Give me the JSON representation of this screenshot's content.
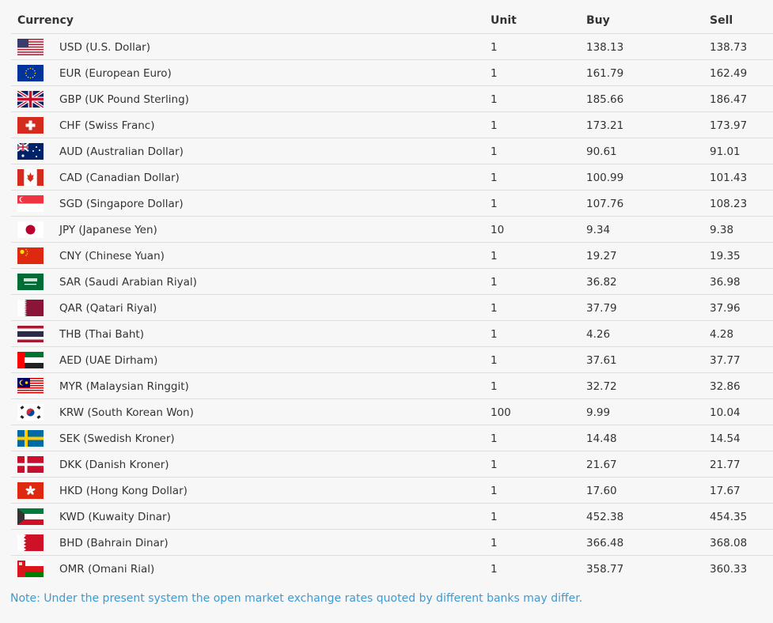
{
  "table": {
    "headers": {
      "currency": "Currency",
      "unit": "Unit",
      "buy": "Buy",
      "sell": "Sell"
    },
    "rows": [
      {
        "flag": "us-flag",
        "currency": "USD (U.S. Dollar)",
        "unit": "1",
        "buy": "138.13",
        "sell": "138.73"
      },
      {
        "flag": "eu-flag",
        "currency": "EUR (European Euro)",
        "unit": "1",
        "buy": "161.79",
        "sell": "162.49"
      },
      {
        "flag": "uk-flag",
        "currency": "GBP (UK Pound Sterling)",
        "unit": "1",
        "buy": "185.66",
        "sell": "186.47"
      },
      {
        "flag": "ch-flag",
        "currency": "CHF (Swiss Franc)",
        "unit": "1",
        "buy": "173.21",
        "sell": "173.97"
      },
      {
        "flag": "au-flag",
        "currency": "AUD (Australian Dollar)",
        "unit": "1",
        "buy": "90.61",
        "sell": "91.01"
      },
      {
        "flag": "ca-flag",
        "currency": "CAD (Canadian Dollar)",
        "unit": "1",
        "buy": "100.99",
        "sell": "101.43"
      },
      {
        "flag": "sg-flag",
        "currency": "SGD (Singapore Dollar)",
        "unit": "1",
        "buy": "107.76",
        "sell": "108.23"
      },
      {
        "flag": "jp-flag",
        "currency": "JPY (Japanese Yen)",
        "unit": "10",
        "buy": "9.34",
        "sell": "9.38"
      },
      {
        "flag": "cn-flag",
        "currency": "CNY (Chinese Yuan)",
        "unit": "1",
        "buy": "19.27",
        "sell": "19.35"
      },
      {
        "flag": "sa-flag",
        "currency": "SAR (Saudi Arabian Riyal)",
        "unit": "1",
        "buy": "36.82",
        "sell": "36.98"
      },
      {
        "flag": "qa-flag",
        "currency": "QAR (Qatari Riyal)",
        "unit": "1",
        "buy": "37.79",
        "sell": "37.96"
      },
      {
        "flag": "th-flag",
        "currency": "THB (Thai Baht)",
        "unit": "1",
        "buy": "4.26",
        "sell": "4.28"
      },
      {
        "flag": "ae-flag",
        "currency": "AED (UAE Dirham)",
        "unit": "1",
        "buy": "37.61",
        "sell": "37.77"
      },
      {
        "flag": "my-flag",
        "currency": "MYR (Malaysian Ringgit)",
        "unit": "1",
        "buy": "32.72",
        "sell": "32.86"
      },
      {
        "flag": "kr-flag",
        "currency": "KRW (South Korean Won)",
        "unit": "100",
        "buy": "9.99",
        "sell": "10.04"
      },
      {
        "flag": "se-flag",
        "currency": "SEK (Swedish Kroner)",
        "unit": "1",
        "buy": "14.48",
        "sell": "14.54"
      },
      {
        "flag": "dk-flag",
        "currency": "DKK (Danish Kroner)",
        "unit": "1",
        "buy": "21.67",
        "sell": "21.77"
      },
      {
        "flag": "hk-flag",
        "currency": "HKD (Hong Kong Dollar)",
        "unit": "1",
        "buy": "17.60",
        "sell": "17.67"
      },
      {
        "flag": "kw-flag",
        "currency": "KWD (Kuwaity Dinar)",
        "unit": "1",
        "buy": "452.38",
        "sell": "454.35"
      },
      {
        "flag": "bh-flag",
        "currency": "BHD (Bahrain Dinar)",
        "unit": "1",
        "buy": "366.48",
        "sell": "368.08"
      },
      {
        "flag": "om-flag",
        "currency": "OMR (Omani Rial)",
        "unit": "1",
        "buy": "358.77",
        "sell": "360.33"
      }
    ]
  },
  "note": "Note: Under the present system the open market exchange rates quoted by different banks may differ.",
  "colors": {
    "background": "#f7f7f7",
    "note": "#3d9ad1",
    "text": "#333333",
    "divider": "#dedede"
  }
}
